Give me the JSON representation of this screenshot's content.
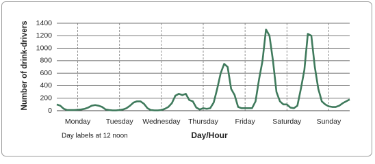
{
  "chart_data": {
    "type": "line",
    "y_label": "Number of drink-drivers",
    "x_label": "Day/Hour",
    "annotation": "Day labels at 12 noon",
    "x": [
      0,
      2,
      4,
      6,
      8,
      10,
      12,
      14,
      16,
      18,
      20,
      22,
      24,
      26,
      28,
      30,
      32,
      34,
      36,
      38,
      40,
      42,
      44,
      46,
      48,
      50,
      52,
      54,
      56,
      58,
      60,
      62,
      64,
      66,
      68,
      70,
      72,
      74,
      76,
      78,
      80,
      82,
      84,
      86,
      88,
      90,
      92,
      94,
      96,
      98,
      100,
      102,
      104,
      106,
      108,
      110,
      112,
      114,
      116,
      118,
      120,
      122,
      124,
      126,
      128,
      130,
      132,
      134,
      136,
      138,
      140,
      142,
      144,
      146,
      148,
      150,
      152,
      154,
      156,
      158,
      160,
      162,
      164,
      166,
      168
    ],
    "series": [
      {
        "name": "Drink-drivers",
        "color": "#3f7a5c",
        "values": [
          100,
          80,
          30,
          10,
          10,
          10,
          15,
          20,
          30,
          50,
          80,
          90,
          80,
          60,
          20,
          10,
          5,
          5,
          10,
          20,
          40,
          80,
          130,
          150,
          150,
          110,
          40,
          10,
          5,
          5,
          10,
          30,
          60,
          120,
          240,
          270,
          250,
          270,
          170,
          150,
          50,
          20,
          40,
          30,
          40,
          130,
          350,
          600,
          750,
          700,
          350,
          250,
          60,
          40,
          40,
          40,
          40,
          150,
          500,
          800,
          1300,
          1200,
          800,
          300,
          150,
          100,
          100,
          50,
          40,
          80,
          350,
          650,
          1230,
          1200,
          700,
          350,
          150,
          100,
          70,
          60,
          60,
          80,
          120,
          150,
          180
        ]
      }
    ],
    "xlim": [
      0,
      168
    ],
    "xticks": [
      {
        "value": 12,
        "label": "Monday"
      },
      {
        "value": 36,
        "label": "Tuesday"
      },
      {
        "value": 60,
        "label": "Wednesday"
      },
      {
        "value": 84,
        "label": "Thursday"
      },
      {
        "value": 108,
        "label": "Friday"
      },
      {
        "value": 132,
        "label": "Saturday"
      },
      {
        "value": 156,
        "label": "Sunday"
      }
    ],
    "ylim": [
      0,
      1400
    ],
    "yticks": [
      0,
      200,
      400,
      600,
      800,
      1000,
      1200,
      1400
    ],
    "grid": true
  }
}
